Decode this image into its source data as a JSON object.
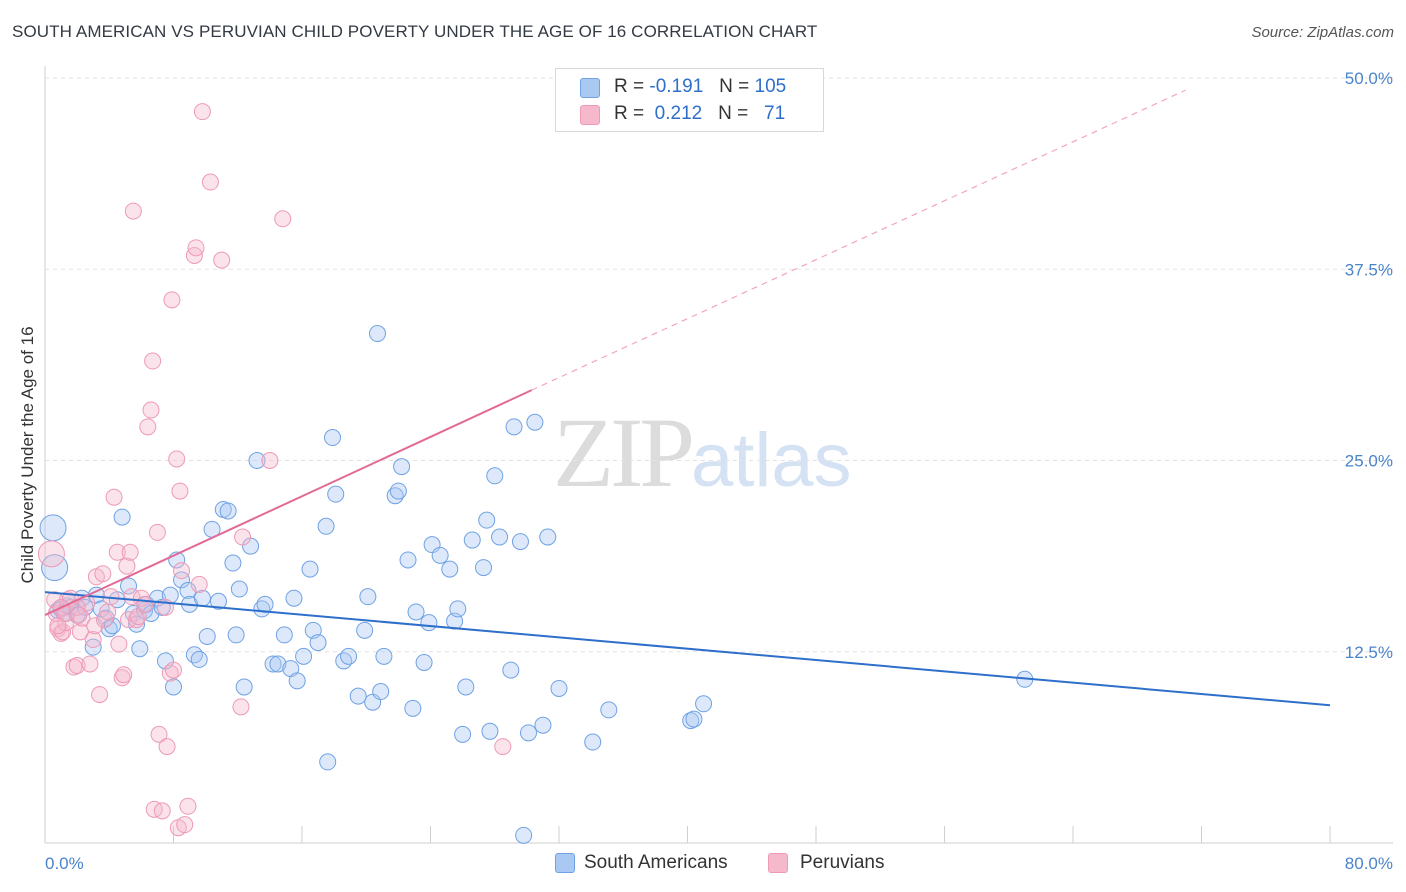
{
  "header": {
    "title": "SOUTH AMERICAN VS PERUVIAN CHILD POVERTY UNDER THE AGE OF 16 CORRELATION CHART",
    "source": "Source: ZipAtlas.com"
  },
  "watermark": {
    "zip": "ZIP",
    "atlas": "atlas"
  },
  "legend": {
    "rows": [
      {
        "name": "South Americans",
        "r_label": "R =",
        "r_value": "-0.191",
        "n_label": "N =",
        "n_value": "105",
        "color": "#a9c9f3"
      },
      {
        "name": "Peruvians",
        "r_label": "R =",
        "r_value": " 0.212",
        "n_label": "N =",
        "n_value": "  71",
        "color": "#f6b9cc"
      }
    ]
  },
  "chart_data": {
    "type": "scatter",
    "title": "SOUTH AMERICAN VS PERUVIAN CHILD POVERTY UNDER THE AGE OF 16 CORRELATION CHART",
    "xlabel": "",
    "ylabel": "Child Poverty Under the Age of 16",
    "xlim": [
      0,
      80
    ],
    "ylim": [
      0,
      50
    ],
    "x_tick_labels": [
      "0.0%",
      "80.0%"
    ],
    "y_ticks": [
      12.5,
      25.0,
      37.5,
      50.0
    ],
    "y_tick_labels": [
      "12.5%",
      "25.0%",
      "37.5%",
      "50.0%"
    ],
    "grid": "horizontal dashed",
    "legend_position": "top-center",
    "series": [
      {
        "name": "South Americans",
        "color": "#6fa2e4",
        "fill": "#a9c9f3",
        "trend": {
          "x": [
            0,
            80
          ],
          "y": [
            16.4,
            9.0
          ],
          "style": "solid",
          "color": "#2e6fcb"
        },
        "points": [
          [
            0.5,
            20.6
          ],
          [
            0.6,
            18.0
          ],
          [
            0.8,
            15.2
          ],
          [
            1.0,
            15.3
          ],
          [
            1.2,
            15.0
          ],
          [
            1.4,
            15.5
          ],
          [
            1.6,
            15.4
          ],
          [
            2.0,
            14.9
          ],
          [
            2.3,
            16.0
          ],
          [
            2.5,
            15.4
          ],
          [
            3.0,
            12.8
          ],
          [
            3.2,
            16.2
          ],
          [
            3.5,
            15.3
          ],
          [
            3.8,
            14.7
          ],
          [
            4.0,
            14.0
          ],
          [
            4.2,
            14.2
          ],
          [
            4.5,
            15.9
          ],
          [
            4.8,
            21.3
          ],
          [
            5.2,
            16.8
          ],
          [
            5.5,
            15.0
          ],
          [
            5.7,
            14.3
          ],
          [
            5.9,
            12.7
          ],
          [
            6.2,
            15.2
          ],
          [
            6.3,
            15.6
          ],
          [
            6.6,
            15.0
          ],
          [
            7.0,
            16.0
          ],
          [
            7.3,
            15.4
          ],
          [
            7.5,
            11.9
          ],
          [
            7.8,
            16.2
          ],
          [
            8.0,
            10.2
          ],
          [
            8.2,
            18.5
          ],
          [
            8.5,
            17.2
          ],
          [
            8.9,
            16.5
          ],
          [
            9.0,
            15.6
          ],
          [
            9.3,
            12.3
          ],
          [
            9.6,
            12.0
          ],
          [
            9.8,
            16.0
          ],
          [
            10.1,
            13.5
          ],
          [
            10.4,
            20.5
          ],
          [
            10.8,
            15.8
          ],
          [
            11.1,
            21.8
          ],
          [
            11.4,
            21.7
          ],
          [
            11.7,
            18.3
          ],
          [
            11.9,
            13.6
          ],
          [
            12.1,
            16.6
          ],
          [
            12.4,
            10.2
          ],
          [
            12.8,
            19.4
          ],
          [
            13.2,
            25.0
          ],
          [
            13.5,
            15.3
          ],
          [
            13.7,
            15.6
          ],
          [
            14.2,
            11.7
          ],
          [
            14.5,
            11.7
          ],
          [
            14.9,
            13.6
          ],
          [
            15.3,
            11.4
          ],
          [
            15.5,
            16.0
          ],
          [
            15.7,
            10.6
          ],
          [
            16.1,
            12.2
          ],
          [
            16.5,
            17.9
          ],
          [
            16.7,
            13.9
          ],
          [
            17.0,
            13.1
          ],
          [
            17.5,
            20.7
          ],
          [
            17.6,
            5.3
          ],
          [
            17.9,
            26.5
          ],
          [
            18.1,
            22.8
          ],
          [
            18.6,
            11.9
          ],
          [
            18.9,
            12.2
          ],
          [
            19.5,
            9.6
          ],
          [
            19.9,
            13.9
          ],
          [
            20.1,
            16.1
          ],
          [
            20.4,
            9.2
          ],
          [
            20.7,
            33.3
          ],
          [
            20.9,
            9.9
          ],
          [
            21.1,
            12.2
          ],
          [
            21.8,
            22.7
          ],
          [
            22.0,
            23.0
          ],
          [
            22.2,
            24.6
          ],
          [
            22.6,
            18.5
          ],
          [
            22.9,
            8.8
          ],
          [
            23.1,
            15.1
          ],
          [
            23.6,
            11.8
          ],
          [
            23.9,
            14.4
          ],
          [
            24.1,
            19.5
          ],
          [
            24.6,
            18.8
          ],
          [
            25.2,
            17.9
          ],
          [
            25.5,
            14.5
          ],
          [
            25.7,
            15.3
          ],
          [
            26.0,
            7.1
          ],
          [
            26.2,
            10.2
          ],
          [
            26.6,
            19.8
          ],
          [
            27.3,
            18.0
          ],
          [
            27.5,
            21.1
          ],
          [
            27.7,
            7.3
          ],
          [
            28.0,
            24.0
          ],
          [
            28.3,
            20.0
          ],
          [
            29.0,
            11.3
          ],
          [
            29.2,
            27.2
          ],
          [
            29.6,
            19.7
          ],
          [
            29.8,
            0.5
          ],
          [
            30.1,
            7.2
          ],
          [
            30.5,
            27.5
          ],
          [
            31.0,
            7.7
          ],
          [
            31.3,
            20.0
          ],
          [
            32.0,
            10.1
          ],
          [
            34.1,
            6.6
          ],
          [
            35.1,
            8.7
          ],
          [
            40.2,
            8.0
          ],
          [
            40.4,
            8.1
          ],
          [
            41.0,
            9.1
          ],
          [
            61.0,
            10.7
          ]
        ]
      },
      {
        "name": "Peruvians",
        "color": "#ee9ab6",
        "fill": "#f6b9cc",
        "trend": {
          "x": [
            0,
            30.3
          ],
          "y": [
            14.9,
            29.6
          ],
          "style": "solid",
          "color": "#e26a95",
          "extension": {
            "x": [
              30.3,
              71
            ],
            "y": [
              29.6,
              49.2
            ],
            "style": "dashed"
          }
        },
        "points": [
          [
            0.4,
            18.9
          ],
          [
            0.6,
            15.9
          ],
          [
            0.7,
            15.0
          ],
          [
            0.8,
            14.0
          ],
          [
            1.0,
            13.7
          ],
          [
            1.1,
            13.8
          ],
          [
            1.3,
            14.4
          ],
          [
            1.4,
            15.9
          ],
          [
            1.6,
            16.0
          ],
          [
            1.8,
            11.5
          ],
          [
            2.0,
            11.6
          ],
          [
            2.2,
            13.8
          ],
          [
            2.3,
            14.7
          ],
          [
            2.6,
            15.7
          ],
          [
            2.8,
            11.7
          ],
          [
            3.0,
            13.3
          ],
          [
            3.1,
            14.2
          ],
          [
            3.2,
            17.4
          ],
          [
            3.4,
            9.7
          ],
          [
            3.6,
            17.6
          ],
          [
            3.7,
            14.6
          ],
          [
            3.9,
            15.1
          ],
          [
            4.1,
            16.1
          ],
          [
            4.3,
            22.6
          ],
          [
            4.5,
            19.0
          ],
          [
            4.6,
            13.0
          ],
          [
            4.8,
            10.8
          ],
          [
            4.9,
            11.0
          ],
          [
            5.1,
            18.1
          ],
          [
            5.2,
            14.6
          ],
          [
            5.3,
            19.0
          ],
          [
            5.4,
            16.1
          ],
          [
            5.5,
            41.3
          ],
          [
            5.7,
            14.6
          ],
          [
            5.8,
            14.8
          ],
          [
            6.0,
            16.0
          ],
          [
            6.2,
            15.6
          ],
          [
            6.4,
            27.2
          ],
          [
            6.6,
            28.3
          ],
          [
            6.7,
            31.5
          ],
          [
            6.8,
            2.2
          ],
          [
            7.0,
            20.3
          ],
          [
            7.1,
            7.1
          ],
          [
            7.3,
            2.1
          ],
          [
            7.5,
            15.4
          ],
          [
            7.6,
            6.3
          ],
          [
            7.8,
            11.1
          ],
          [
            7.9,
            35.5
          ],
          [
            8.0,
            11.3
          ],
          [
            8.2,
            25.1
          ],
          [
            8.3,
            1.0
          ],
          [
            8.4,
            23.0
          ],
          [
            8.5,
            17.8
          ],
          [
            8.7,
            1.2
          ],
          [
            8.9,
            2.4
          ],
          [
            9.3,
            38.4
          ],
          [
            9.4,
            38.9
          ],
          [
            9.6,
            16.9
          ],
          [
            9.8,
            47.8
          ],
          [
            10.3,
            43.2
          ],
          [
            11.0,
            38.1
          ],
          [
            12.3,
            20.0
          ],
          [
            12.2,
            8.9
          ],
          [
            14.0,
            25.0
          ],
          [
            14.8,
            40.8
          ],
          [
            1.0,
            15.4
          ],
          [
            1.3,
            15.0
          ],
          [
            2.0,
            15.4
          ],
          [
            2.1,
            14.9
          ],
          [
            28.5,
            6.3
          ],
          [
            0.8,
            14.2
          ]
        ]
      }
    ]
  }
}
